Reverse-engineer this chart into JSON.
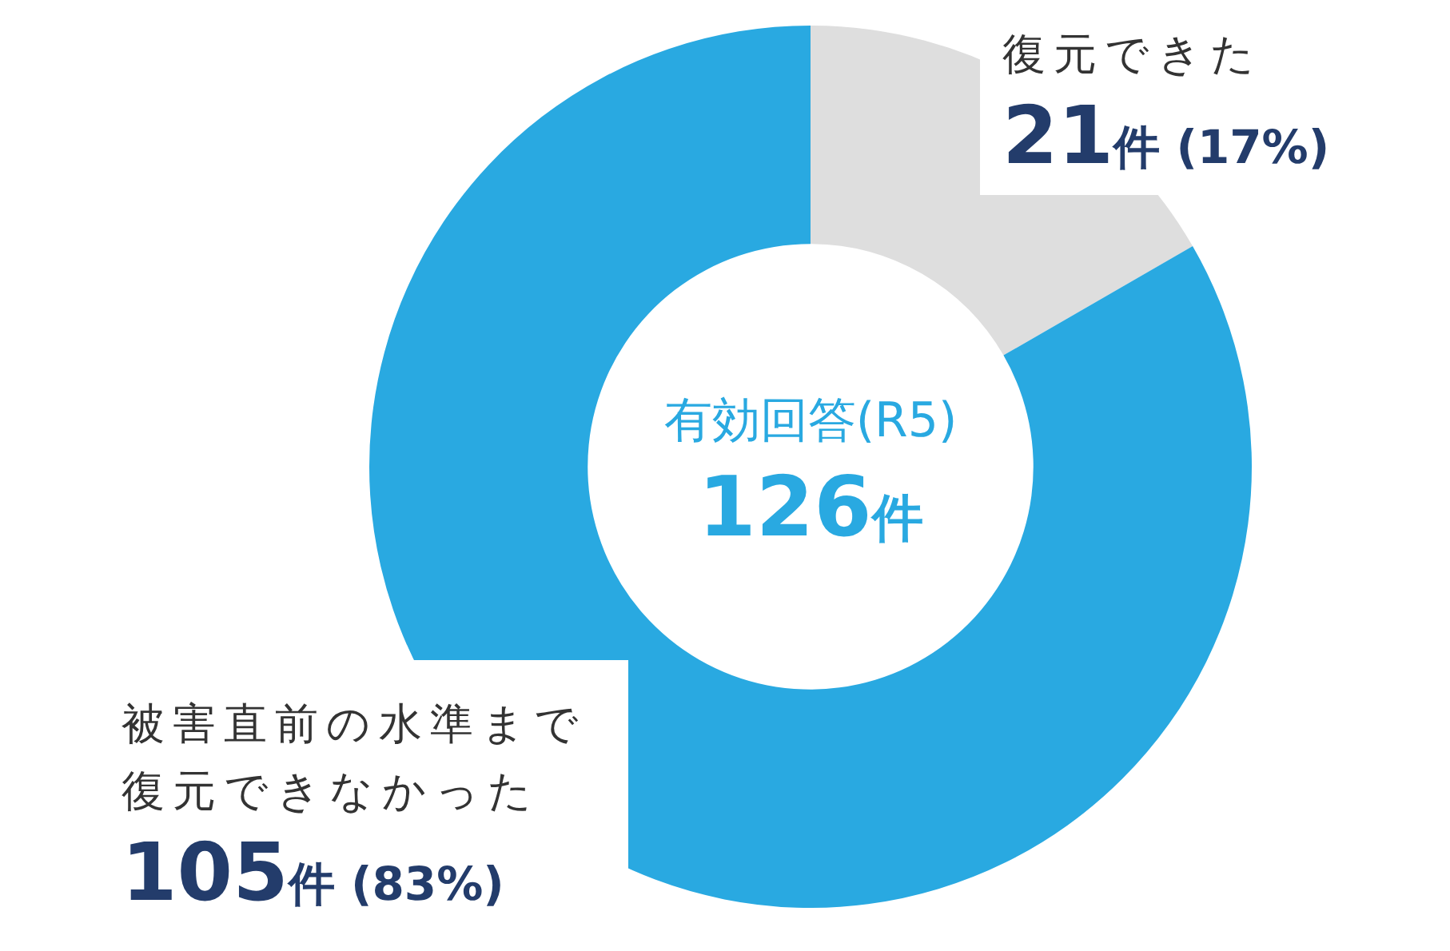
{
  "chart_data": {
    "type": "donut",
    "categories": [
      "復元できた",
      "被害直前の水準まで復元できなかった"
    ],
    "values": [
      21,
      105
    ],
    "colors": [
      "#dedede",
      "#29a9e1"
    ],
    "value_labels": [
      "21件 (17%)",
      "105件 (83%)"
    ],
    "annotations": [
      "有効回答(R5)",
      "126件"
    ]
  }
}
